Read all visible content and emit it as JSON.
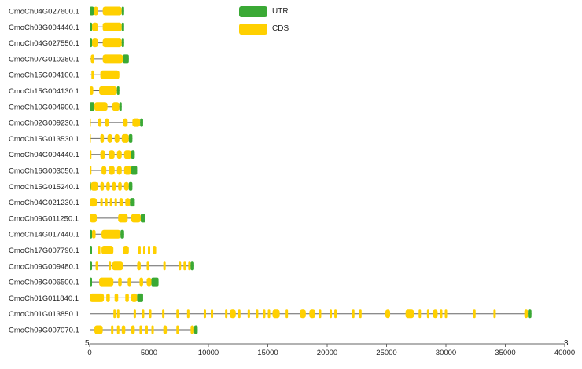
{
  "colors": {
    "utr": "#3aa935",
    "cds": "#ffd000",
    "intron": "#666666",
    "axis": "#666666",
    "text": "#222222"
  },
  "legend": [
    {
      "label": "UTR",
      "color": "#3aa935"
    },
    {
      "label": "CDS",
      "color": "#ffd000"
    }
  ],
  "chart_data": {
    "type": "gene-structure",
    "x_axis": {
      "min": 0,
      "max": 40000,
      "ticks": [
        0,
        5000,
        10000,
        15000,
        20000,
        25000,
        30000,
        35000,
        40000
      ],
      "left_label": "5'",
      "right_label": "3'"
    },
    "genes": [
      {
        "name": "CmoCh04G027600.1",
        "length": 2900,
        "utr": [
          [
            0,
            350
          ],
          [
            2700,
            2900
          ]
        ],
        "cds": [
          [
            350,
            700
          ],
          [
            1100,
            2700
          ]
        ]
      },
      {
        "name": "CmoCh03G004440.1",
        "length": 2900,
        "utr": [
          [
            0,
            200
          ],
          [
            2700,
            2900
          ]
        ],
        "cds": [
          [
            200,
            700
          ],
          [
            1100,
            2700
          ]
        ]
      },
      {
        "name": "CmoCh04G027550.1",
        "length": 2900,
        "utr": [
          [
            0,
            200
          ],
          [
            2700,
            2900
          ]
        ],
        "cds": [
          [
            200,
            700
          ],
          [
            1100,
            2700
          ]
        ]
      },
      {
        "name": "CmoCh07G010280.1",
        "length": 3300,
        "utr": [
          [
            2800,
            3300
          ]
        ],
        "cds": [
          [
            100,
            400
          ],
          [
            1100,
            2800
          ]
        ]
      },
      {
        "name": "CmoCh15G004100.1",
        "length": 2500,
        "utr": [],
        "cds": [
          [
            150,
            350
          ],
          [
            900,
            2500
          ]
        ]
      },
      {
        "name": "CmoCh15G004130.1",
        "length": 2500,
        "utr": [
          [
            2300,
            2500
          ]
        ],
        "cds": [
          [
            0,
            300
          ],
          [
            800,
            2300
          ]
        ]
      },
      {
        "name": "CmoCh10G004900.1",
        "length": 2700,
        "utr": [
          [
            0,
            400
          ],
          [
            2500,
            2700
          ]
        ],
        "cds": [
          [
            400,
            1500
          ],
          [
            1900,
            2500
          ]
        ]
      },
      {
        "name": "CmoCh02G009230.1",
        "length": 4500,
        "utr": [
          [
            4250,
            4500
          ]
        ],
        "cds": [
          [
            0,
            100
          ],
          [
            700,
            1000
          ],
          [
            1300,
            1600
          ],
          [
            2800,
            3200
          ],
          [
            3600,
            4250
          ]
        ]
      },
      {
        "name": "CmoCh15G013530.1",
        "length": 3600,
        "utr": [
          [
            3300,
            3600
          ]
        ],
        "cds": [
          [
            0,
            100
          ],
          [
            900,
            1200
          ],
          [
            1500,
            1900
          ],
          [
            2100,
            2500
          ],
          [
            2700,
            3300
          ]
        ]
      },
      {
        "name": "CmoCh04G004440.1",
        "length": 3800,
        "utr": [
          [
            3500,
            3800
          ]
        ],
        "cds": [
          [
            0,
            150
          ],
          [
            900,
            1300
          ],
          [
            1600,
            2100
          ],
          [
            2300,
            2700
          ],
          [
            2900,
            3500
          ]
        ]
      },
      {
        "name": "CmoCh16G003050.1",
        "length": 4000,
        "utr": [
          [
            3500,
            4000
          ]
        ],
        "cds": [
          [
            0,
            150
          ],
          [
            1000,
            1400
          ],
          [
            1600,
            2100
          ],
          [
            2300,
            2700
          ],
          [
            2900,
            3500
          ]
        ]
      },
      {
        "name": "CmoCh15G015240.1",
        "length": 3600,
        "utr": [
          [
            0,
            100
          ],
          [
            3300,
            3600
          ]
        ],
        "cds": [
          [
            100,
            700
          ],
          [
            900,
            1200
          ],
          [
            1400,
            1700
          ],
          [
            1900,
            2200
          ],
          [
            2400,
            2700
          ],
          [
            2900,
            3300
          ]
        ]
      },
      {
        "name": "CmoCh04G021230.1",
        "length": 3800,
        "utr": [
          [
            3400,
            3800
          ]
        ],
        "cds": [
          [
            0,
            600
          ],
          [
            900,
            1100
          ],
          [
            1300,
            1500
          ],
          [
            1700,
            1900
          ],
          [
            2100,
            2300
          ],
          [
            2500,
            2800
          ],
          [
            3000,
            3400
          ]
        ]
      },
      {
        "name": "CmoCh09G011250.1",
        "length": 4700,
        "utr": [
          [
            4300,
            4700
          ]
        ],
        "cds": [
          [
            0,
            600
          ],
          [
            2400,
            3200
          ],
          [
            3500,
            4300
          ]
        ]
      },
      {
        "name": "CmoCh14G017440.1",
        "length": 2900,
        "utr": [
          [
            0,
            200
          ],
          [
            2600,
            2900
          ]
        ],
        "cds": [
          [
            200,
            500
          ],
          [
            1000,
            2600
          ]
        ]
      },
      {
        "name": "CmoCh17G007790.1",
        "length": 5600,
        "utr": [
          [
            0,
            200
          ]
        ],
        "cds": [
          [
            700,
            900
          ],
          [
            1000,
            2000
          ],
          [
            2800,
            3300
          ],
          [
            4100,
            4300
          ],
          [
            4500,
            4700
          ],
          [
            4900,
            5100
          ],
          [
            5300,
            5600
          ]
        ]
      },
      {
        "name": "CmoCh09G009480.1",
        "length": 8800,
        "utr": [
          [
            0,
            200
          ],
          [
            8500,
            8800
          ]
        ],
        "cds": [
          [
            500,
            700
          ],
          [
            1600,
            1800
          ],
          [
            1900,
            2800
          ],
          [
            4000,
            4300
          ],
          [
            4800,
            5000
          ],
          [
            6200,
            6400
          ],
          [
            7500,
            7700
          ],
          [
            7900,
            8100
          ],
          [
            8300,
            8500
          ]
        ]
      },
      {
        "name": "CmoCh08G006500.1",
        "length": 5800,
        "utr": [
          [
            0,
            200
          ],
          [
            5200,
            5800
          ]
        ],
        "cds": [
          [
            800,
            2000
          ],
          [
            2400,
            2700
          ],
          [
            3200,
            3500
          ],
          [
            4200,
            4500
          ],
          [
            4800,
            5200
          ]
        ]
      },
      {
        "name": "CmoCh01G011840.1",
        "length": 4500,
        "utr": [
          [
            4000,
            4500
          ]
        ],
        "cds": [
          [
            0,
            1200
          ],
          [
            1400,
            1700
          ],
          [
            2100,
            2400
          ],
          [
            3000,
            3300
          ],
          [
            3500,
            4000
          ]
        ]
      },
      {
        "name": "CmoCh01G013850.1",
        "length": 37200,
        "utr": [
          [
            36900,
            37200
          ]
        ],
        "cds": [
          [
            2000,
            2200
          ],
          [
            2300,
            2500
          ],
          [
            3700,
            3900
          ],
          [
            4400,
            4600
          ],
          [
            5000,
            5200
          ],
          [
            6100,
            6300
          ],
          [
            7300,
            7500
          ],
          [
            8200,
            8400
          ],
          [
            9600,
            9800
          ],
          [
            10200,
            10400
          ],
          [
            11400,
            11600
          ],
          [
            11800,
            12300
          ],
          [
            12500,
            12700
          ],
          [
            13300,
            13500
          ],
          [
            14000,
            14200
          ],
          [
            14600,
            14800
          ],
          [
            15000,
            15200
          ],
          [
            15400,
            16000
          ],
          [
            16500,
            16700
          ],
          [
            17700,
            18200
          ],
          [
            18500,
            19000
          ],
          [
            19300,
            19500
          ],
          [
            20200,
            20400
          ],
          [
            20600,
            20800
          ],
          [
            22100,
            22300
          ],
          [
            22700,
            22900
          ],
          [
            24900,
            25300
          ],
          [
            26600,
            27300
          ],
          [
            27700,
            27900
          ],
          [
            28400,
            28600
          ],
          [
            28900,
            29300
          ],
          [
            29500,
            29700
          ],
          [
            29900,
            30100
          ],
          [
            32300,
            32500
          ],
          [
            34000,
            34200
          ],
          [
            36600,
            36900
          ]
        ]
      },
      {
        "name": "CmoCh09G007070.1",
        "length": 9100,
        "utr": [
          [
            8800,
            9100
          ]
        ],
        "cds": [
          [
            400,
            1100
          ],
          [
            1800,
            2000
          ],
          [
            2300,
            2500
          ],
          [
            2700,
            3000
          ],
          [
            3500,
            3800
          ],
          [
            4200,
            4400
          ],
          [
            4700,
            4900
          ],
          [
            5200,
            5400
          ],
          [
            6200,
            6500
          ],
          [
            7300,
            7500
          ],
          [
            8500,
            8800
          ]
        ]
      }
    ]
  }
}
